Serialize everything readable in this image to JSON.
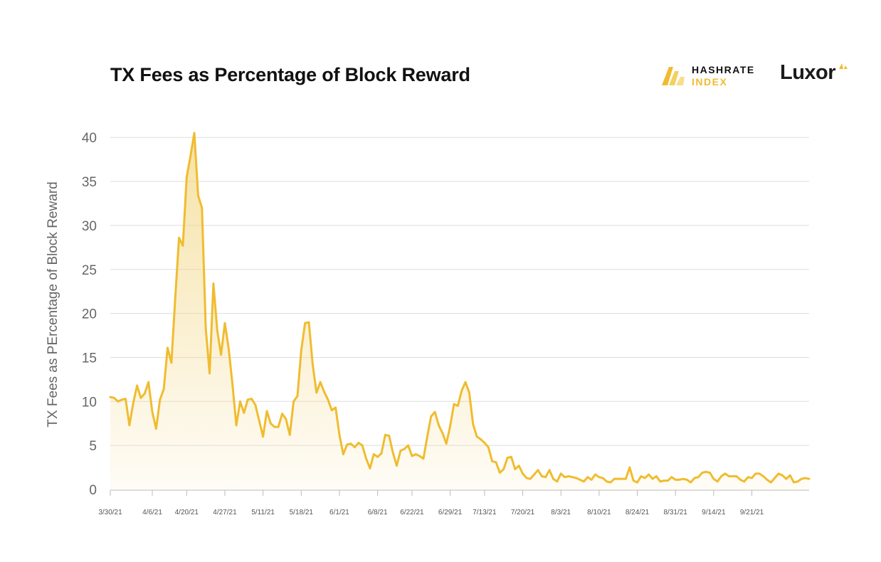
{
  "header": {
    "title": "TX Fees as Percentage of Block Reward",
    "brand_line1": "HASHRATE",
    "brand_line2": "INDEX",
    "luxor": "Luxor"
  },
  "colors": {
    "line": "#f0bc2f",
    "fill_top": "#f3d98a",
    "grid": "#dddddd",
    "axis": "#bbbbbb"
  },
  "chart_data": {
    "type": "area",
    "title": "TX Fees as Percentage of Block Reward",
    "xlabel": "",
    "ylabel": "TX Fees as PErcentage of Block Reward",
    "ylim": [
      0,
      41
    ],
    "yticks": [
      0,
      5,
      10,
      15,
      20,
      25,
      30,
      35,
      40
    ],
    "xticks": [
      {
        "label": "3/30/21",
        "i": 0
      },
      {
        "label": "4/6/21",
        "i": 11
      },
      {
        "label": "4/20/21",
        "i": 20
      },
      {
        "label": "4/27/21",
        "i": 30
      },
      {
        "label": "5/11/21",
        "i": 40
      },
      {
        "label": "5/18/21",
        "i": 50
      },
      {
        "label": "6/1/21",
        "i": 60
      },
      {
        "label": "6/8/21",
        "i": 70
      },
      {
        "label": "6/22/21",
        "i": 79
      },
      {
        "label": "6/29/21",
        "i": 89
      },
      {
        "label": "7/13/21",
        "i": 98
      },
      {
        "label": "7/20/21",
        "i": 108
      },
      {
        "label": "8/3/21",
        "i": 118
      },
      {
        "label": "8/10/21",
        "i": 128
      },
      {
        "label": "8/24/21",
        "i": 138
      },
      {
        "label": "8/31/21",
        "i": 148
      },
      {
        "label": "9/14/21",
        "i": 158
      },
      {
        "label": "9/21/21",
        "i": 168
      }
    ],
    "series": [
      {
        "name": "TX Fees %",
        "values": [
          10.5,
          10.4,
          10.0,
          10.2,
          10.3,
          7.3,
          9.8,
          11.8,
          10.4,
          10.9,
          12.2,
          8.8,
          6.9,
          10.2,
          11.4,
          16.1,
          14.4,
          21.7,
          28.6,
          27.7,
          35.5,
          37.9,
          40.5,
          33.4,
          32.0,
          18.3,
          13.2,
          23.4,
          18.1,
          15.3,
          18.9,
          16.0,
          11.9,
          7.3,
          10.0,
          8.7,
          10.2,
          10.3,
          9.6,
          7.8,
          6.0,
          8.9,
          7.5,
          7.1,
          7.1,
          8.6,
          8.0,
          6.2,
          10.0,
          10.6,
          15.8,
          18.9,
          19.0,
          14.2,
          11.0,
          12.2,
          11.1,
          10.2,
          9.0,
          9.3,
          6.2,
          4.0,
          5.1,
          5.2,
          4.8,
          5.3,
          5.0,
          3.5,
          2.4,
          4.0,
          3.7,
          4.1,
          6.2,
          6.1,
          4.2,
          2.7,
          4.4,
          4.6,
          5.0,
          3.8,
          4.0,
          3.8,
          3.5,
          6.0,
          8.3,
          8.8,
          7.3,
          6.4,
          5.2,
          7.2,
          9.7,
          9.5,
          11.2,
          12.2,
          11.0,
          7.4,
          6.0,
          5.7,
          5.3,
          4.8,
          3.2,
          3.1,
          1.9,
          2.3,
          3.6,
          3.7,
          2.3,
          2.7,
          1.8,
          1.3,
          1.2,
          1.7,
          2.2,
          1.5,
          1.4,
          2.2,
          1.2,
          0.9,
          1.8,
          1.4,
          1.5,
          1.4,
          1.3,
          1.1,
          0.9,
          1.4,
          1.1,
          1.7,
          1.4,
          1.3,
          0.9,
          0.8,
          1.2,
          1.2,
          1.2,
          1.2,
          2.5,
          1.0,
          0.8,
          1.5,
          1.3,
          1.7,
          1.2,
          1.5,
          0.9,
          1.0,
          1.0,
          1.4,
          1.1,
          1.1,
          1.2,
          1.1,
          0.8,
          1.3,
          1.4,
          1.9,
          2.0,
          1.9,
          1.2,
          0.9,
          1.5,
          1.8,
          1.5,
          1.5,
          1.5,
          1.1,
          0.9,
          1.4,
          1.3,
          1.8,
          1.8,
          1.5,
          1.1,
          0.8,
          1.3,
          1.8,
          1.6,
          1.2,
          1.6,
          0.8,
          0.9,
          1.2,
          1.3,
          1.2
        ]
      }
    ]
  }
}
